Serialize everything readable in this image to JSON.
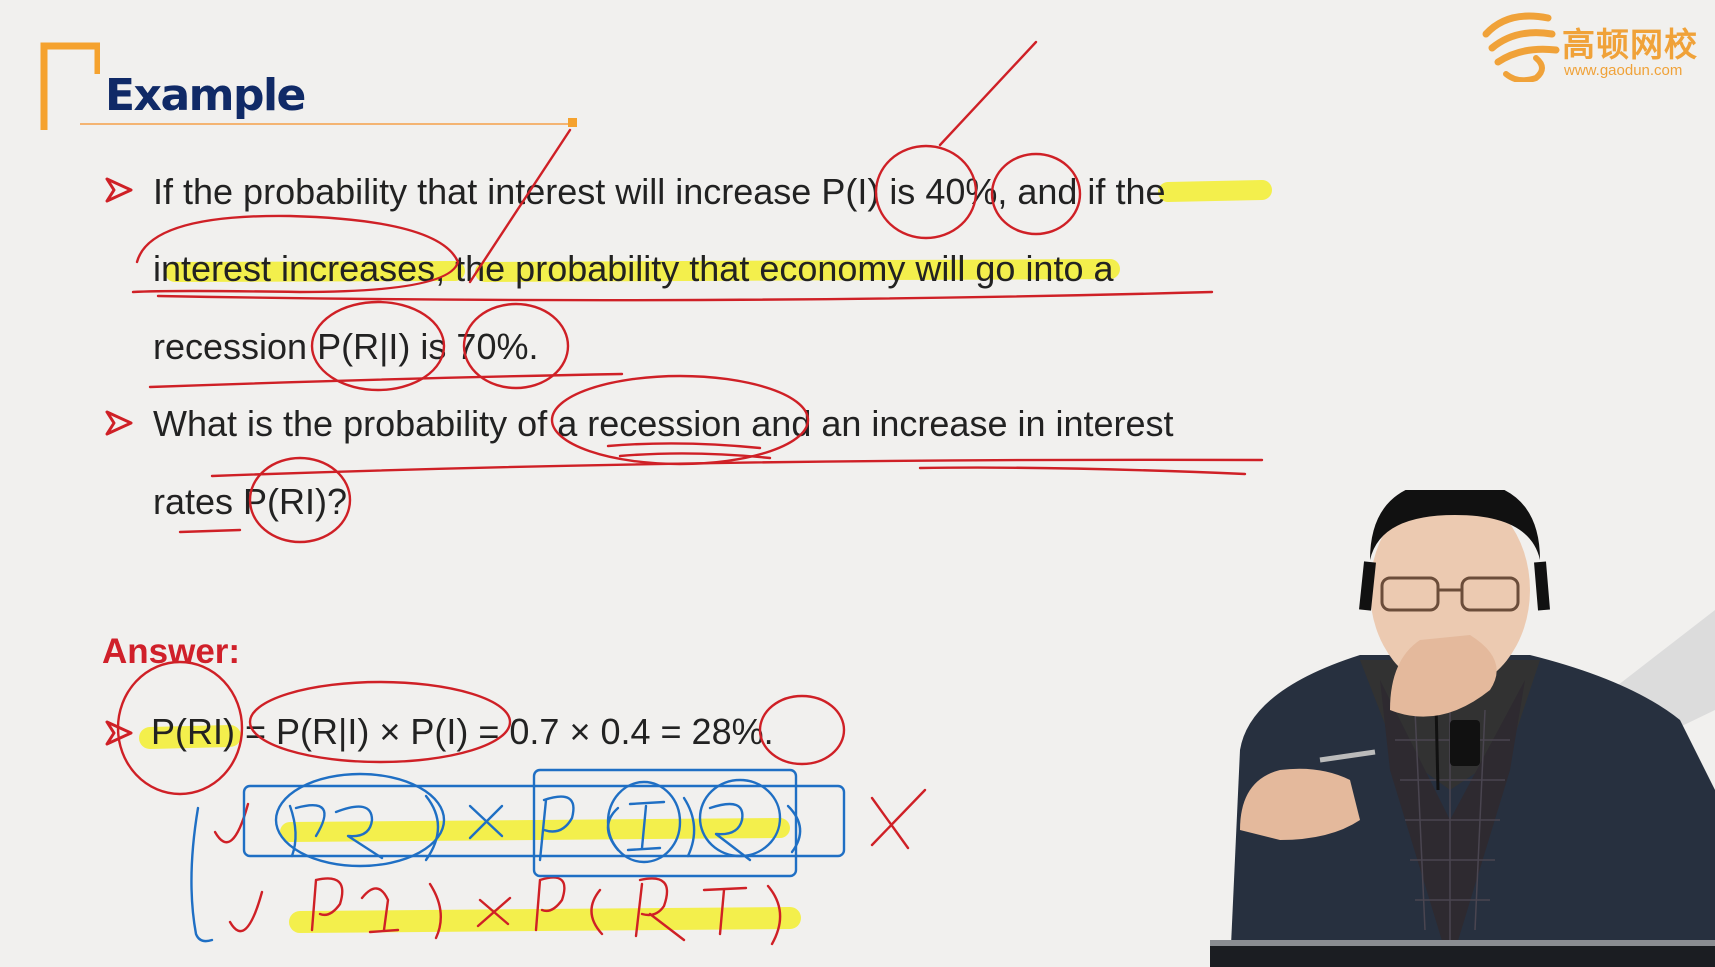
{
  "slide": {
    "title": "Example",
    "bullets": [
      {
        "lines": [
          "If the probability that interest will increase P(I) is 40%, and if the",
          "interest increases, the probability that economy will go into a",
          "recession P(R|I) is 70%."
        ]
      },
      {
        "lines": [
          "What is the probability of a recession and an increase in interest",
          "rates P(RI)?"
        ]
      }
    ],
    "answer_label": "Answer:",
    "formula": "P(RI) = P(R|I) × P(I) = 0.7 × 0.4 = 28%."
  },
  "logo": {
    "name": "高顿网校",
    "url": "www.gaodun.com"
  },
  "colors": {
    "title": "#102a67",
    "accent": "#f5a22e",
    "answer": "#d0202a",
    "ink_red": "#cf2026",
    "ink_blue": "#1f6fc4",
    "highlight": "#f3ef2f"
  },
  "icons": [
    "arrow-bullet-icon",
    "gaodun-logo-icon"
  ]
}
